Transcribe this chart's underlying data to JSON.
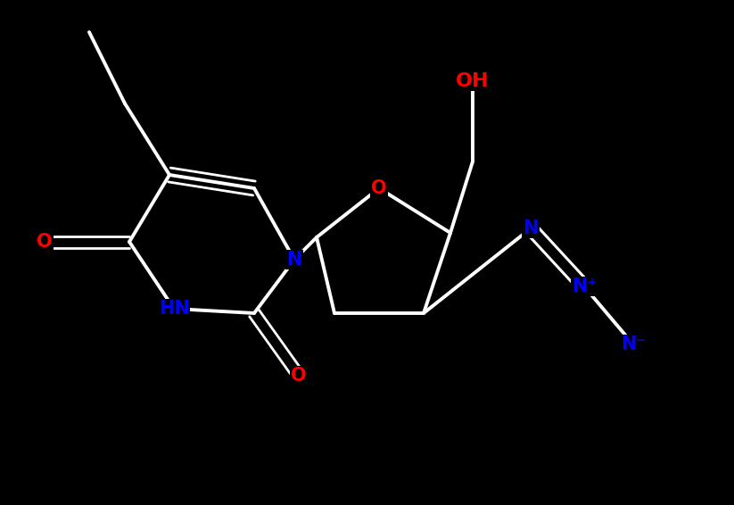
{
  "background_color": "#000000",
  "bond_color": "#ffffff",
  "atom_colors": {
    "O": "#ff0000",
    "N": "#0000ff",
    "H": "#ffffff",
    "C": "#ffffff"
  },
  "figsize": [
    8.23,
    5.66
  ],
  "dpi": 100,
  "xlim": [
    0,
    8.23
  ],
  "ylim": [
    0,
    5.66
  ]
}
